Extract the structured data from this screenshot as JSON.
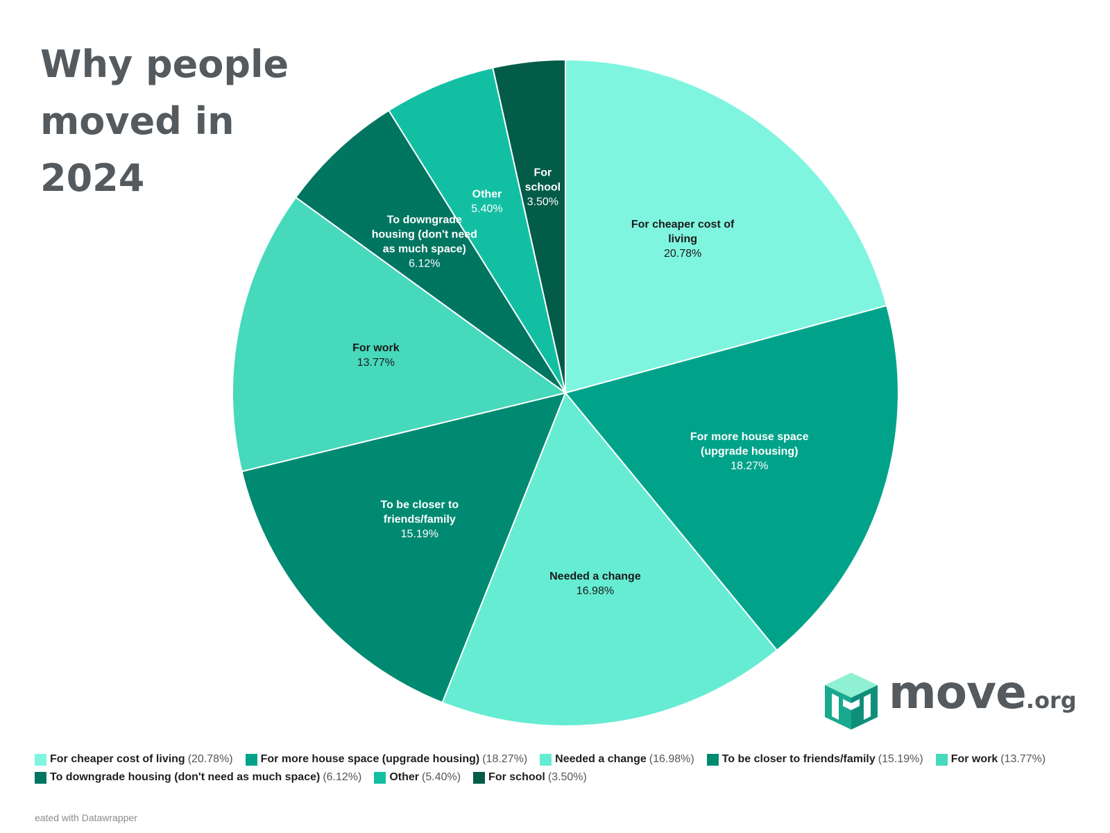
{
  "title_lines": [
    "Why people",
    "moved in",
    "2024"
  ],
  "chart_data": {
    "type": "pie",
    "title": "Why people moved in 2024",
    "slices": [
      {
        "label": "For cheaper cost of living",
        "display_label": [
          "For cheaper cost of",
          "living"
        ],
        "value": 20.78,
        "pct_text": "20.78%",
        "color": "#7ff5e0",
        "text_color": "#1a1a1a"
      },
      {
        "label": "For more house space (upgrade housing)",
        "display_label": [
          "For more house space",
          "(upgrade housing)"
        ],
        "value": 18.27,
        "pct_text": "18.27%",
        "color": "#00a38a",
        "text_color": "#ffffff"
      },
      {
        "label": "Needed a change",
        "display_label": [
          "Needed a change"
        ],
        "value": 16.98,
        "pct_text": "16.98%",
        "color": "#66ecd3",
        "text_color": "#1a1a1a"
      },
      {
        "label": "To be closer to friends/family",
        "display_label": [
          "To be closer to",
          "friends/family"
        ],
        "value": 15.19,
        "pct_text": "15.19%",
        "color": "#008a72",
        "text_color": "#ffffff"
      },
      {
        "label": "For work",
        "display_label": [
          "For work"
        ],
        "value": 13.77,
        "pct_text": "13.77%",
        "color": "#47d9bb",
        "text_color": "#1a1a1a"
      },
      {
        "label": "To downgrade housing (don't need as much space)",
        "display_label": [
          "To downgrade",
          "housing (don't need",
          "as much space)"
        ],
        "value": 6.12,
        "pct_text": "6.12%",
        "color": "#007560",
        "text_color": "#ffffff"
      },
      {
        "label": "Other",
        "display_label": [
          "Other"
        ],
        "value": 5.4,
        "pct_text": "5.40%",
        "color": "#13bfa3",
        "text_color": "#ffffff"
      },
      {
        "label": "For school",
        "display_label": [
          "For",
          "school"
        ],
        "value": 3.5,
        "pct_text": "3.50%",
        "color": "#035c48",
        "text_color": "#ffffff"
      }
    ]
  },
  "legend_items": [
    {
      "name": "For cheaper cost of living",
      "pct": "(20.78%)",
      "color": "#7ff5e0"
    },
    {
      "name": "For more house space (upgrade housing)",
      "pct": "(18.27%)",
      "color": "#00a38a"
    },
    {
      "name": "Needed a change",
      "pct": "(16.98%)",
      "color": "#66ecd3"
    },
    {
      "name": "To be closer to friends/family",
      "pct": "(15.19%)",
      "color": "#008a72"
    },
    {
      "name": "For work",
      "pct": "(13.77%)",
      "color": "#47d9bb"
    },
    {
      "name": "To downgrade housing (don't need as much space)",
      "pct": "(6.12%)",
      "color": "#007560"
    },
    {
      "name": "Other",
      "pct": "(5.40%)",
      "color": "#13bfa3"
    },
    {
      "name": "For school",
      "pct": "(3.50%)",
      "color": "#035c48"
    }
  ],
  "logo": {
    "name": "move",
    "suffix": ".org",
    "icon": "cube-logo-icon"
  },
  "footer": "eated with Datawrapper"
}
